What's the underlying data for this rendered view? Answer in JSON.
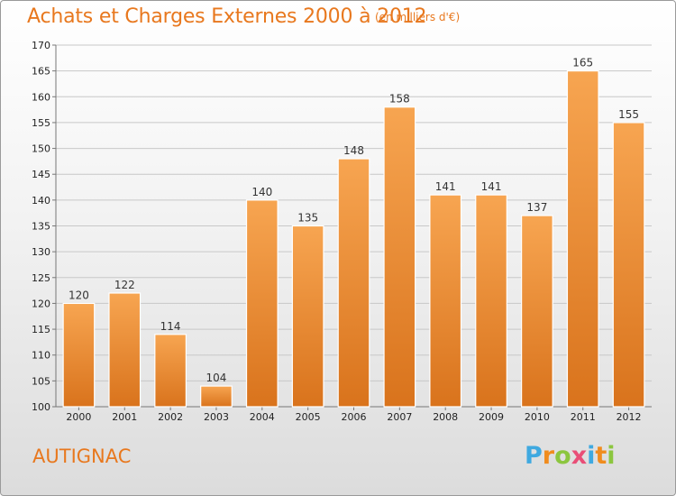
{
  "header": {
    "title": "Achats et Charges Externes 2000 à 2012",
    "subtitle": "(en milliers d'€)"
  },
  "footer": {
    "town": "AUTIGNAC",
    "logo_text": "Proxiti",
    "logo_letters": [
      {
        "char": "P",
        "color": "#3fa9e0"
      },
      {
        "char": "r",
        "color": "#f08c1e"
      },
      {
        "char": "o",
        "color": "#8cc63f"
      },
      {
        "char": "x",
        "color": "#e94e77"
      },
      {
        "char": "i",
        "color": "#3fa9e0"
      },
      {
        "char": "t",
        "color": "#f08c1e"
      },
      {
        "char": "i",
        "color": "#8cc63f"
      }
    ]
  },
  "colors": {
    "accent": "#e8781e",
    "bar_top": "#f7a551",
    "bar_bottom": "#d9731c"
  },
  "chart_data": {
    "type": "bar",
    "title": "Achats et Charges Externes 2000 à 2012",
    "subtitle": "(en milliers d'€)",
    "categories": [
      "2000",
      "2001",
      "2002",
      "2003",
      "2004",
      "2005",
      "2006",
      "2007",
      "2008",
      "2009",
      "2010",
      "2011",
      "2012"
    ],
    "values": [
      120,
      122,
      114,
      104,
      140,
      135,
      148,
      158,
      141,
      141,
      137,
      165,
      155
    ],
    "ylim": [
      100,
      170
    ],
    "yticks": [
      100,
      105,
      110,
      115,
      120,
      125,
      130,
      135,
      140,
      145,
      150,
      155,
      160,
      165,
      170
    ],
    "grid": true,
    "data_labels": true
  }
}
